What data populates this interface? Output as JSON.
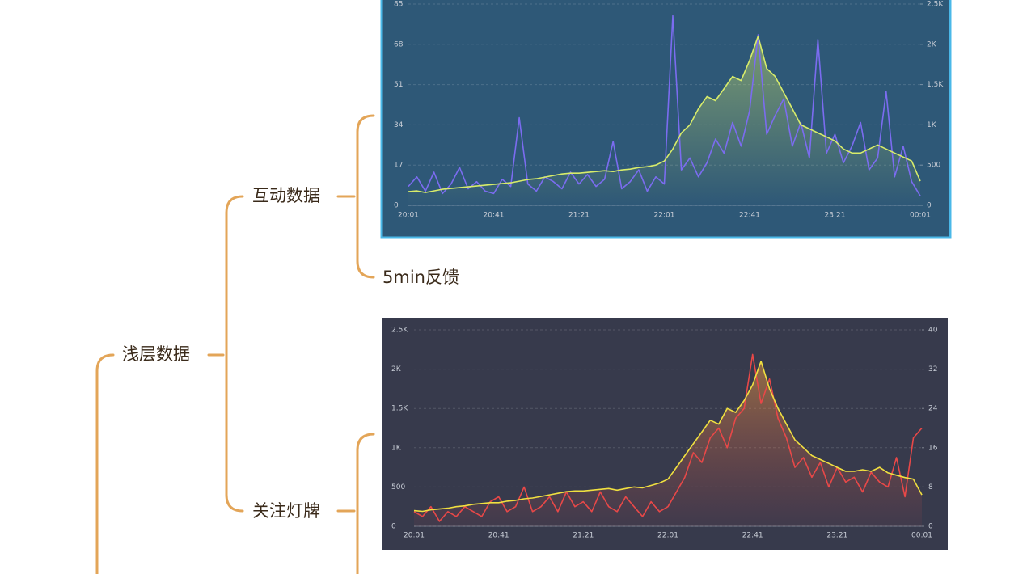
{
  "nodes": {
    "root": "浅层数据",
    "interaction": "互动数据",
    "follow": "关注灯牌",
    "feedback": "5min反馈"
  },
  "chart_data": [
    {
      "type": "line",
      "categories": [
        "20:01",
        null,
        null,
        null,
        null,
        null,
        null,
        null,
        null,
        null,
        "20:41",
        null,
        null,
        null,
        null,
        null,
        null,
        null,
        null,
        null,
        "21:21",
        null,
        null,
        null,
        null,
        null,
        null,
        null,
        null,
        null,
        "22:01",
        null,
        null,
        null,
        null,
        null,
        null,
        null,
        null,
        null,
        "22:41",
        null,
        null,
        null,
        null,
        null,
        null,
        null,
        null,
        null,
        "23:21",
        null,
        null,
        null,
        null,
        null,
        null,
        null,
        null,
        null,
        "00:01"
      ],
      "ylim": [
        0,
        85
      ],
      "yticks": [
        0,
        17,
        34,
        51,
        68,
        85
      ],
      "y2lim": [
        0,
        2500
      ],
      "y2ticks": [
        0,
        500,
        {
          "value": 1000,
          "label": "1K"
        },
        {
          "value": 1500,
          "label": "1.5K"
        },
        {
          "value": 2000,
          "label": "2K"
        },
        {
          "value": 2500,
          "label": "2.5K"
        }
      ],
      "grid": true,
      "series": [
        {
          "color": "#7b6cf0",
          "values": [
            8,
            12,
            6,
            14,
            5,
            9,
            16,
            7,
            10,
            6,
            5,
            11,
            8,
            37,
            9,
            6,
            12,
            10,
            7,
            14,
            9,
            13,
            8,
            11,
            27,
            7,
            10,
            15,
            6,
            12,
            9,
            80,
            15,
            20,
            12,
            18,
            28,
            22,
            35,
            25,
            40,
            72,
            30,
            38,
            45,
            25,
            35,
            20,
            70,
            22,
            30,
            18,
            25,
            35,
            15,
            20,
            48,
            12,
            25,
            10,
            4
          ]
        },
        {
          "color": "#d8ec6a",
          "axis": "y2",
          "values": [
            170,
            180,
            160,
            180,
            200,
            210,
            220,
            230,
            240,
            250,
            260,
            270,
            280,
            300,
            320,
            330,
            350,
            370,
            390,
            400,
            400,
            410,
            420,
            430,
            420,
            440,
            450,
            470,
            480,
            500,
            550,
            700,
            900,
            1000,
            1200,
            1350,
            1300,
            1450,
            1600,
            1550,
            1800,
            2100,
            1700,
            1600,
            1400,
            1200,
            1000,
            950,
            900,
            850,
            800,
            700,
            650,
            650,
            700,
            750,
            700,
            650,
            600,
            550,
            300
          ]
        }
      ]
    },
    {
      "type": "line",
      "categories": [
        "20:01",
        null,
        null,
        null,
        null,
        null,
        null,
        null,
        null,
        null,
        "20:41",
        null,
        null,
        null,
        null,
        null,
        null,
        null,
        null,
        null,
        "21:21",
        null,
        null,
        null,
        null,
        null,
        null,
        null,
        null,
        null,
        "22:01",
        null,
        null,
        null,
        null,
        null,
        null,
        null,
        null,
        null,
        "22:41",
        null,
        null,
        null,
        null,
        null,
        null,
        null,
        null,
        null,
        "23:21",
        null,
        null,
        null,
        null,
        null,
        null,
        null,
        null,
        null,
        "00:01"
      ],
      "ylim": [
        0,
        2500
      ],
      "yticks": [
        0,
        500,
        {
          "value": 1000,
          "label": "1K"
        },
        {
          "value": 1500,
          "label": "1.5K"
        },
        {
          "value": 2000,
          "label": "2K"
        },
        {
          "value": 2500,
          "label": "2.5K"
        }
      ],
      "y2lim": [
        0,
        40
      ],
      "y2ticks": [
        0,
        8,
        16,
        24,
        32,
        40
      ],
      "grid": true,
      "series": [
        {
          "color": "#f0e040",
          "values": [
            200,
            190,
            210,
            220,
            230,
            250,
            260,
            280,
            290,
            300,
            300,
            320,
            330,
            350,
            360,
            380,
            400,
            420,
            440,
            450,
            450,
            460,
            470,
            480,
            460,
            480,
            500,
            490,
            520,
            550,
            600,
            750,
            900,
            1050,
            1200,
            1350,
            1300,
            1500,
            1450,
            1600,
            1800,
            2100,
            1750,
            1500,
            1300,
            1100,
            1000,
            900,
            850,
            800,
            750,
            700,
            700,
            720,
            700,
            750,
            680,
            650,
            620,
            600,
            400
          ]
        },
        {
          "color": "#e84848",
          "axis": "y2",
          "values": [
            3,
            2,
            4,
            1,
            3,
            2,
            4,
            3,
            2,
            5,
            6,
            3,
            4,
            8,
            3,
            4,
            6,
            3,
            7,
            4,
            5,
            3,
            7,
            4,
            3,
            6,
            4,
            2,
            5,
            3,
            4,
            7,
            10,
            15,
            13,
            18,
            20,
            16,
            22,
            24,
            35,
            25,
            30,
            22,
            18,
            12,
            14,
            10,
            13,
            8,
            12,
            9,
            10,
            7,
            11,
            9,
            8,
            14,
            6,
            18,
            20
          ]
        }
      ]
    }
  ]
}
